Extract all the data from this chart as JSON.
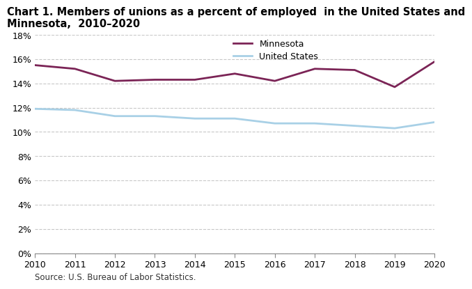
{
  "years": [
    2010,
    2011,
    2012,
    2013,
    2014,
    2015,
    2016,
    2017,
    2018,
    2019,
    2020
  ],
  "minnesota": [
    15.5,
    15.2,
    14.2,
    14.3,
    14.3,
    14.8,
    14.2,
    15.2,
    15.1,
    13.7,
    15.8
  ],
  "united_states": [
    11.9,
    11.8,
    11.3,
    11.3,
    11.1,
    11.1,
    10.7,
    10.7,
    10.5,
    10.3,
    10.8
  ],
  "mn_color": "#7B2456",
  "us_color": "#A8D0E6",
  "line_width": 2.0,
  "title_line1": "Chart 1. Members of unions as a percent of employed  in the United States and",
  "title_line2": "Minnesota,  2010–2020",
  "title_fontsize": 10.5,
  "legend_labels": [
    "Minnesota",
    "United States"
  ],
  "ylim": [
    0,
    18
  ],
  "yticks": [
    0,
    2,
    4,
    6,
    8,
    10,
    12,
    14,
    16,
    18
  ],
  "grid_color": "#c8c8c8",
  "source_text": "Source: U.S. Bureau of Labor Statistics.",
  "background_color": "#ffffff",
  "tick_fontsize": 9,
  "legend_fontsize": 9,
  "source_fontsize": 8.5
}
